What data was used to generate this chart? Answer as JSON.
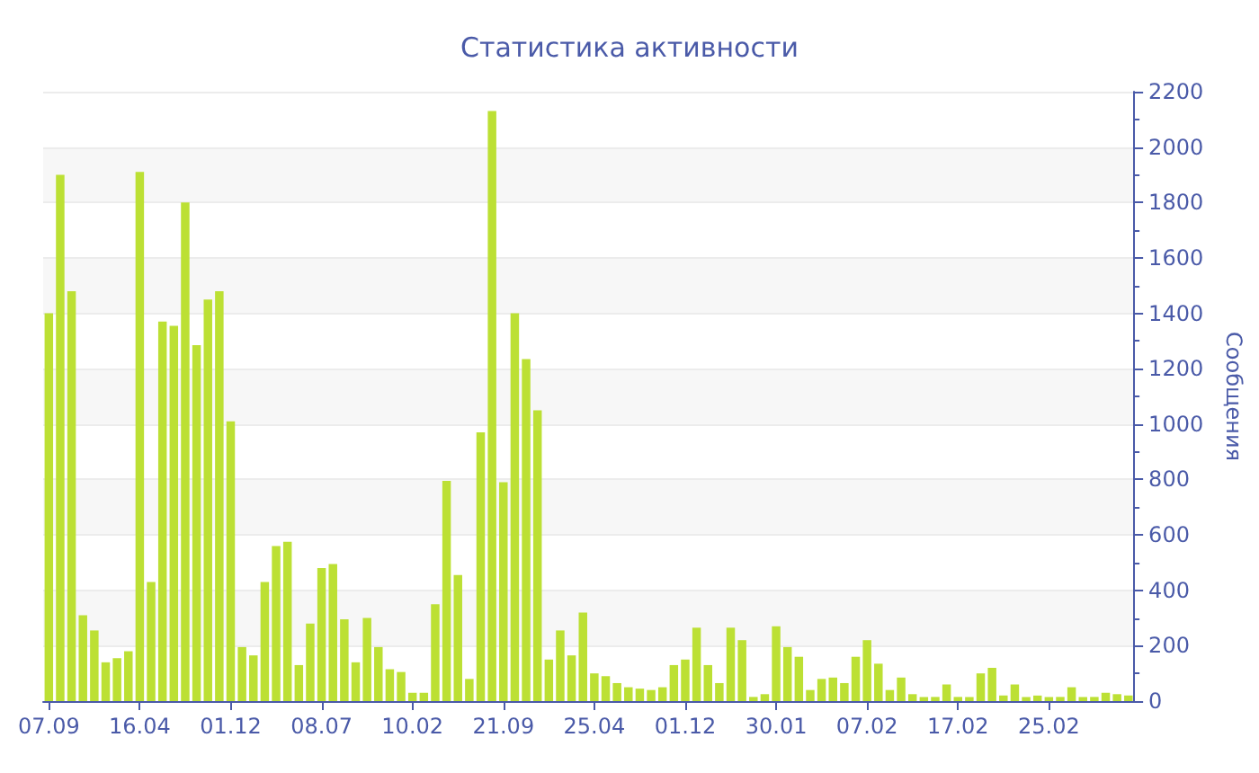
{
  "chart_data": {
    "type": "bar",
    "title": "Статистика активности",
    "ylabel": "Сообщения",
    "categories": [
      "07.09",
      null,
      null,
      null,
      null,
      null,
      null,
      null,
      "16.04",
      null,
      null,
      null,
      null,
      null,
      null,
      null,
      "01.12",
      null,
      null,
      null,
      null,
      null,
      null,
      null,
      "08.07",
      null,
      null,
      null,
      null,
      null,
      null,
      null,
      "10.02",
      null,
      null,
      null,
      null,
      null,
      null,
      null,
      "21.09",
      null,
      null,
      null,
      null,
      null,
      null,
      null,
      "25.04",
      null,
      null,
      null,
      null,
      null,
      null,
      null,
      "01.12",
      null,
      null,
      null,
      null,
      null,
      null,
      null,
      "30.01",
      null,
      null,
      null,
      null,
      null,
      null,
      null,
      "07.02",
      null,
      null,
      null,
      null,
      null,
      null,
      null,
      "17.02",
      null,
      null,
      null,
      null,
      null,
      null,
      null,
      "25.02",
      null,
      null,
      null,
      null,
      null,
      null,
      null
    ],
    "values": [
      1400,
      1900,
      1480,
      310,
      255,
      140,
      155,
      180,
      1910,
      430,
      1370,
      1355,
      1800,
      1285,
      1450,
      1480,
      1010,
      195,
      165,
      430,
      560,
      575,
      130,
      280,
      480,
      495,
      295,
      140,
      300,
      195,
      115,
      105,
      30,
      30,
      350,
      795,
      455,
      80,
      970,
      2130,
      790,
      1400,
      1235,
      1050,
      150,
      255,
      165,
      320,
      100,
      90,
      65,
      50,
      45,
      40,
      50,
      130,
      150,
      265,
      130,
      65,
      265,
      220,
      15,
      25,
      270,
      195,
      160,
      40,
      80,
      85,
      65,
      160,
      220,
      135,
      40,
      85,
      25,
      15,
      15,
      60,
      15,
      15,
      100,
      120,
      20,
      60,
      15,
      20,
      15,
      15,
      50,
      15,
      15,
      30,
      25,
      20
    ],
    "color": "#bce034",
    "ylim": [
      0,
      2200
    ],
    "yticks": [
      0,
      200,
      400,
      600,
      800,
      1000,
      1200,
      1400,
      1600,
      1800,
      2000,
      2200
    ],
    "grid": "y"
  }
}
